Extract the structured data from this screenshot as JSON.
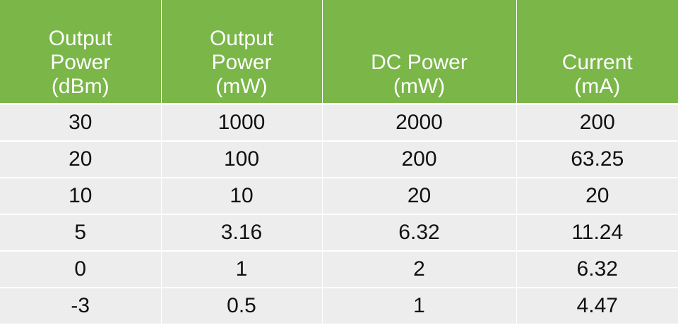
{
  "table": {
    "headers": [
      [
        "Output",
        "Power",
        "(dBm)"
      ],
      [
        "Output",
        "Power",
        "(mW)"
      ],
      [
        "DC Power",
        "(mW)"
      ],
      [
        "Current",
        "(mA)"
      ]
    ],
    "rows": [
      [
        "30",
        "1000",
        "2000",
        "200"
      ],
      [
        "20",
        "100",
        "200",
        "63.25"
      ],
      [
        "10",
        "10",
        "20",
        "20"
      ],
      [
        "5",
        "3.16",
        "6.32",
        "11.24"
      ],
      [
        "0",
        "1",
        "2",
        "6.32"
      ],
      [
        "-3",
        "0.5",
        "1",
        "4.47"
      ]
    ]
  },
  "colors": {
    "header_bg": "#7ab648",
    "header_text": "#ffffff",
    "row_bg": "#ededed",
    "body_text": "#111111"
  }
}
